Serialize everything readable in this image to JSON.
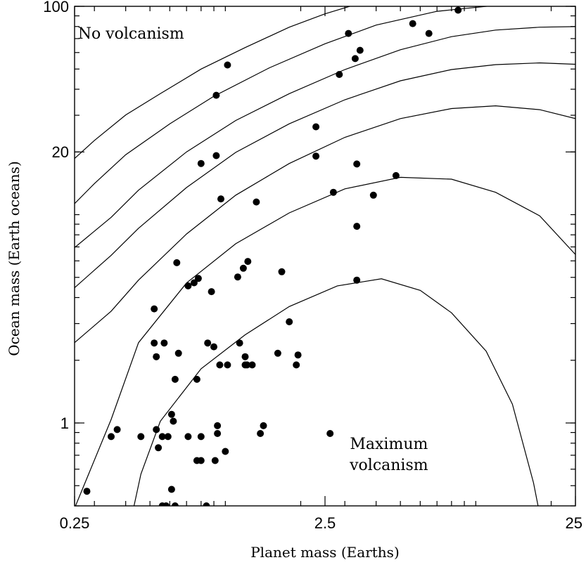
{
  "chart_data": {
    "type": "scatter",
    "title": "",
    "xlabel": "Planet mass (Earths)",
    "ylabel": "Ocean mass (Earth oceans)",
    "x_scale": "log",
    "y_scale": "log",
    "xlim": [
      0.25,
      25
    ],
    "ylim": [
      0.4,
      100
    ],
    "x_ticks": [
      {
        "value": 0.25,
        "label": "0.25"
      },
      {
        "value": 2.5,
        "label": "2.5"
      },
      {
        "value": 25,
        "label": "25"
      }
    ],
    "y_ticks": [
      {
        "value": 1,
        "label": "1"
      },
      {
        "value": 20,
        "label": "20"
      },
      {
        "value": 100,
        "label": "100"
      }
    ],
    "grid": false,
    "annotations": [
      {
        "id": "no-volcanism",
        "text": [
          "No volcanism"
        ],
        "x": 0.42,
        "y": 70
      },
      {
        "id": "maximum-volcanism",
        "text": [
          "Maximum",
          "volcanism"
        ],
        "x": 4.5,
        "y": 0.75
      }
    ],
    "contours": [
      [
        [
          0.25,
          18.6
        ],
        [
          0.3,
          22.7
        ],
        [
          0.4,
          30.1
        ],
        [
          0.55,
          38.1
        ],
        [
          0.8,
          50
        ],
        [
          1.2,
          63.4
        ],
        [
          1.8,
          79.4
        ],
        [
          2.5,
          92
        ],
        [
          3.5,
          104
        ]
      ],
      [
        [
          0.25,
          11.3
        ],
        [
          0.3,
          14.1
        ],
        [
          0.4,
          19.4
        ],
        [
          0.6,
          27.3
        ],
        [
          0.9,
          37
        ],
        [
          1.5,
          50.7
        ],
        [
          2.5,
          66.1
        ],
        [
          4,
          81.3
        ],
        [
          7,
          94.6
        ],
        [
          12,
          101
        ],
        [
          18,
          104
        ],
        [
          25,
          105
        ]
      ],
      [
        [
          0.25,
          6.95
        ],
        [
          0.35,
          9.71
        ],
        [
          0.45,
          13.1
        ],
        [
          0.7,
          20
        ],
        [
          1.1,
          28.3
        ],
        [
          1.8,
          38.1
        ],
        [
          3,
          49.7
        ],
        [
          5,
          61.9
        ],
        [
          8,
          71.5
        ],
        [
          12,
          76.9
        ],
        [
          18,
          79.4
        ],
        [
          25,
          79.9
        ]
      ],
      [
        [
          0.25,
          4.46
        ],
        [
          0.35,
          6.38
        ],
        [
          0.45,
          8.6
        ],
        [
          0.7,
          13.5
        ],
        [
          1.1,
          19.9
        ],
        [
          1.8,
          27.3
        ],
        [
          3,
          35.6
        ],
        [
          5,
          43.9
        ],
        [
          8,
          49.7
        ],
        [
          12,
          52.5
        ],
        [
          18,
          53.5
        ],
        [
          25,
          52.7
        ]
      ],
      [
        [
          0.25,
          2.43
        ],
        [
          0.35,
          3.44
        ],
        [
          0.45,
          4.85
        ],
        [
          0.7,
          8.08
        ],
        [
          1.1,
          12.4
        ],
        [
          1.8,
          17.6
        ],
        [
          3,
          23.5
        ],
        [
          5,
          28.9
        ],
        [
          8,
          32.3
        ],
        [
          12,
          33.3
        ],
        [
          18,
          31.9
        ],
        [
          25,
          28.9
        ]
      ],
      [
        [
          0.25,
          0.39
        ],
        [
          0.35,
          1.04
        ],
        [
          0.45,
          2.43
        ],
        [
          0.7,
          4.7
        ],
        [
          1.1,
          7.25
        ],
        [
          1.8,
          10.2
        ],
        [
          3,
          13.3
        ],
        [
          5,
          15.1
        ],
        [
          8,
          14.8
        ],
        [
          12,
          12.8
        ],
        [
          18,
          9.87
        ],
        [
          25,
          6.44
        ]
      ],
      [
        [
          0.43,
          0.39
        ],
        [
          0.46,
          0.568
        ],
        [
          0.55,
          1.02
        ],
        [
          0.8,
          1.82
        ],
        [
          1.2,
          2.65
        ],
        [
          1.8,
          3.62
        ],
        [
          2.8,
          4.55
        ],
        [
          4.2,
          4.92
        ],
        [
          6,
          4.33
        ],
        [
          8,
          3.38
        ],
        [
          11,
          2.21
        ],
        [
          14,
          1.23
        ],
        [
          17,
          0.516
        ],
        [
          17.8,
          0.39
        ]
      ]
    ],
    "series": [
      {
        "points": [
          [
            0.28,
            0.47
          ],
          [
            0.35,
            0.86
          ],
          [
            0.37,
            0.93
          ],
          [
            0.46,
            0.86
          ],
          [
            0.52,
            3.53
          ],
          [
            0.52,
            2.42
          ],
          [
            0.53,
            0.93
          ],
          [
            0.53,
            2.08
          ],
          [
            0.54,
            0.76
          ],
          [
            0.56,
            0.4
          ],
          [
            0.56,
            0.86
          ],
          [
            0.57,
            2.42
          ],
          [
            0.58,
            0.4
          ],
          [
            0.59,
            0.86
          ],
          [
            0.61,
            1.1
          ],
          [
            0.61,
            0.48
          ],
          [
            0.62,
            1.02
          ],
          [
            0.63,
            1.62
          ],
          [
            0.63,
            0.4
          ],
          [
            0.64,
            5.88
          ],
          [
            0.65,
            2.16
          ],
          [
            0.71,
            4.55
          ],
          [
            0.71,
            0.86
          ],
          [
            0.75,
            4.71
          ],
          [
            0.77,
            1.62
          ],
          [
            0.77,
            0.66
          ],
          [
            0.78,
            4.94
          ],
          [
            0.8,
            0.86
          ],
          [
            0.8,
            0.66
          ],
          [
            0.8,
            17.6
          ],
          [
            0.84,
            0.4
          ],
          [
            0.85,
            2.42
          ],
          [
            0.88,
            4.27
          ],
          [
            0.9,
            2.32
          ],
          [
            0.91,
            0.66
          ],
          [
            0.92,
            37.4
          ],
          [
            0.92,
            19.2
          ],
          [
            0.93,
            0.89
          ],
          [
            0.93,
            0.97
          ],
          [
            0.95,
            1.9
          ],
          [
            0.96,
            11.9
          ],
          [
            1,
            0.73
          ],
          [
            1.02,
            52.3
          ],
          [
            1.02,
            1.9
          ],
          [
            1.12,
            5.02
          ],
          [
            1.14,
            2.42
          ],
          [
            1.18,
            5.53
          ],
          [
            1.2,
            1.9
          ],
          [
            1.2,
            2.08
          ],
          [
            1.22,
            1.9
          ],
          [
            1.23,
            5.96
          ],
          [
            1.28,
            1.9
          ],
          [
            1.33,
            11.5
          ],
          [
            1.38,
            0.89
          ],
          [
            1.42,
            0.97
          ],
          [
            1.62,
            2.16
          ],
          [
            1.68,
            5.32
          ],
          [
            1.8,
            3.06
          ],
          [
            1.92,
            1.9
          ],
          [
            1.95,
            2.12
          ],
          [
            2.3,
            26.4
          ],
          [
            2.3,
            19.1
          ],
          [
            2.62,
            0.89
          ],
          [
            2.85,
            47.1
          ],
          [
            3.1,
            74.1
          ],
          [
            3.3,
            56.1
          ],
          [
            3.35,
            17.5
          ],
          [
            3.35,
            4.85
          ],
          [
            3.35,
            8.79
          ],
          [
            3.9,
            12.4
          ],
          [
            4.8,
            15.4
          ],
          [
            5.6,
            82.6
          ],
          [
            6.5,
            74.1
          ],
          [
            8.5,
            95.8
          ],
          [
            3.45,
            61.5
          ],
          [
            2.7,
            12.8
          ]
        ]
      }
    ]
  }
}
